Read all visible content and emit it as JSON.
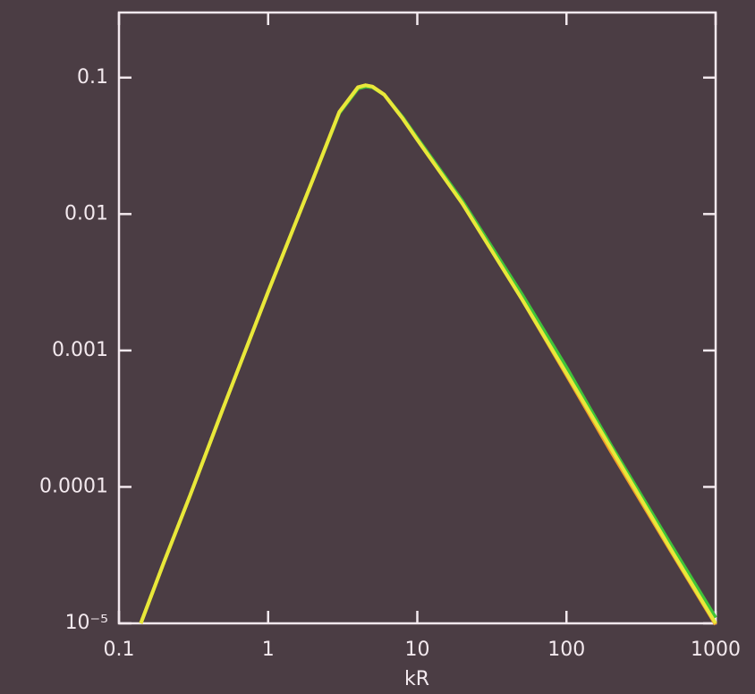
{
  "chart_data": {
    "type": "line",
    "x_label": "kR",
    "x": [
      0.14,
      0.2,
      0.3,
      0.5,
      1,
      2,
      3,
      4,
      4.5,
      5,
      6,
      8,
      10,
      20,
      50,
      100,
      200,
      500,
      1000
    ],
    "series": [
      {
        "color": "#3fc43a",
        "values": [
          1e-05,
          2.8e-05,
          8.7e-05,
          0.00038,
          0.0027,
          0.018,
          0.055,
          0.083,
          0.086,
          0.085,
          0.075,
          0.051,
          0.036,
          0.0125,
          0.0026,
          0.00075,
          0.0002,
          3.8e-05,
          1.1e-05
        ]
      },
      {
        "color": "#f09a2a",
        "values": [
          1e-05,
          2.8e-05,
          8.7e-05,
          0.00038,
          0.0027,
          0.018,
          0.056,
          0.085,
          0.088,
          0.086,
          0.075,
          0.05,
          0.035,
          0.012,
          0.0024,
          0.00066,
          0.00018,
          3.4e-05,
          9.8e-06
        ]
      },
      {
        "color": "#e8e83a",
        "values": [
          1e-05,
          2.8e-05,
          8.7e-05,
          0.00038,
          0.0027,
          0.018,
          0.056,
          0.085,
          0.088,
          0.086,
          0.075,
          0.05,
          0.035,
          0.012,
          0.0024,
          0.00068,
          0.00019,
          3.5e-05,
          1e-05
        ]
      }
    ],
    "xlim": [
      0.1,
      1000
    ],
    "xticks": [
      0.1,
      1,
      10,
      100,
      1000
    ],
    "ylim": [
      1e-05,
      0.3
    ],
    "yticks": [
      {
        "value": 1e-05,
        "label": "10⁻⁵"
      },
      0.0001,
      0.001,
      0.01,
      0.1
    ],
    "xscale": "log",
    "yscale": "log"
  }
}
